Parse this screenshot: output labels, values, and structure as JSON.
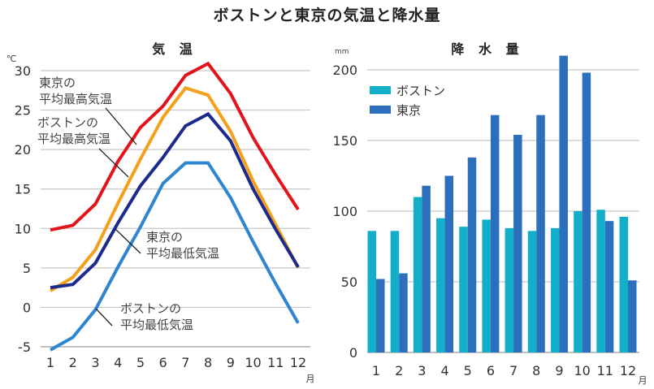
{
  "title": "ボストンと東京の気温と降水量",
  "chart_data": [
    {
      "type": "line",
      "title": "気 温",
      "ylabel": "℃",
      "xlabel": "月",
      "ylim": [
        -5,
        30
      ],
      "yticks": [
        -5,
        0,
        5,
        10,
        15,
        20,
        25,
        30
      ],
      "x": [
        1,
        2,
        3,
        4,
        5,
        6,
        7,
        8,
        9,
        10,
        11,
        12
      ],
      "grid": true,
      "series": [
        {
          "name": "東京の平均最高気温",
          "color": "#e3131b",
          "values": [
            9.8,
            10.4,
            13.1,
            18.5,
            22.8,
            25.5,
            29.4,
            30.9,
            27.1,
            21.5,
            16.8,
            12.4
          ]
        },
        {
          "name": "ボストンの平均最高気温",
          "color": "#f5a01a",
          "values": [
            2.1,
            3.8,
            7.3,
            13.2,
            18.8,
            24.1,
            27.8,
            26.9,
            22.3,
            16.0,
            10.5,
            5.0
          ]
        },
        {
          "name": "東京の平均最低気温",
          "color": "#1c2a8c",
          "values": [
            2.5,
            2.9,
            5.6,
            10.7,
            15.4,
            19.0,
            23.0,
            24.5,
            21.1,
            15.0,
            9.9,
            5.1
          ]
        },
        {
          "name": "ボストンの平均最低気温",
          "color": "#2f86d0",
          "values": [
            -5.4,
            -3.8,
            -0.3,
            5.1,
            10.2,
            15.7,
            18.3,
            18.3,
            13.9,
            8.3,
            3.0,
            -2.0
          ]
        }
      ],
      "annotations": [
        {
          "lines": [
            "東京の",
            "平均最高気温"
          ]
        },
        {
          "lines": [
            "ボストンの",
            "平均最高気温"
          ]
        },
        {
          "lines": [
            "東京の",
            "平均最低気温"
          ]
        },
        {
          "lines": [
            "ボストンの",
            "平均最低気温"
          ]
        }
      ]
    },
    {
      "type": "bar",
      "title": "降 水 量",
      "ylabel": "mm",
      "xlabel": "月",
      "ylim": [
        0,
        210
      ],
      "yticks": [
        0,
        50,
        100,
        150,
        200
      ],
      "categories": [
        "1",
        "2",
        "3",
        "4",
        "5",
        "6",
        "7",
        "8",
        "9",
        "10",
        "11",
        "12"
      ],
      "grid": true,
      "legend": "top-left",
      "series": [
        {
          "name": "ボストン",
          "color": "#12afcb",
          "values": [
            86,
            86,
            110,
            95,
            89,
            94,
            88,
            86,
            88,
            100,
            101,
            96
          ]
        },
        {
          "name": "東京",
          "color": "#2c6fbc",
          "values": [
            52,
            56,
            118,
            125,
            138,
            168,
            154,
            168,
            210,
            198,
            93,
            51
          ]
        }
      ]
    }
  ]
}
